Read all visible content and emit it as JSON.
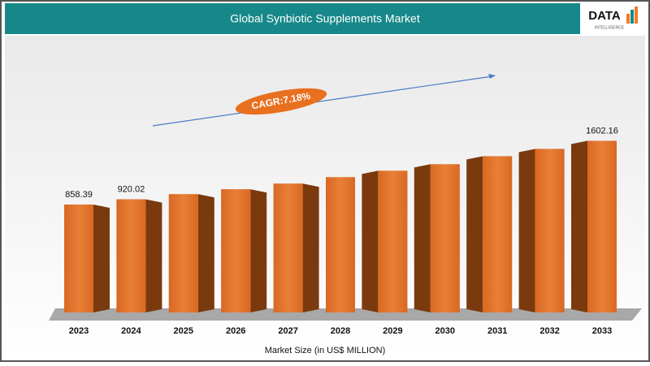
{
  "chart_data": {
    "type": "bar3d",
    "title": "Global Synbiotic Supplements Market",
    "logo": "DATA",
    "logo_tagline": "INTELLIGENCE",
    "annotation": "CAGR:7.18%",
    "x_label": "Market Size (in US$ MILLION)",
    "categories": [
      "2023",
      "2024",
      "2025",
      "2026",
      "2027",
      "2028",
      "2029",
      "2030",
      "2031",
      "2032",
      "2033"
    ],
    "values": [
      858.39,
      920.02,
      980,
      1037,
      1103,
      1178,
      1253,
      1329,
      1423,
      1508,
      1602.16
    ],
    "value_labels": [
      "858.39",
      "920.02",
      null,
      null,
      null,
      null,
      null,
      null,
      null,
      null,
      "1602.16"
    ],
    "color": "#e0702a",
    "side_color": "#7a3a0e",
    "ylim": [
      -400,
      2800
    ]
  }
}
